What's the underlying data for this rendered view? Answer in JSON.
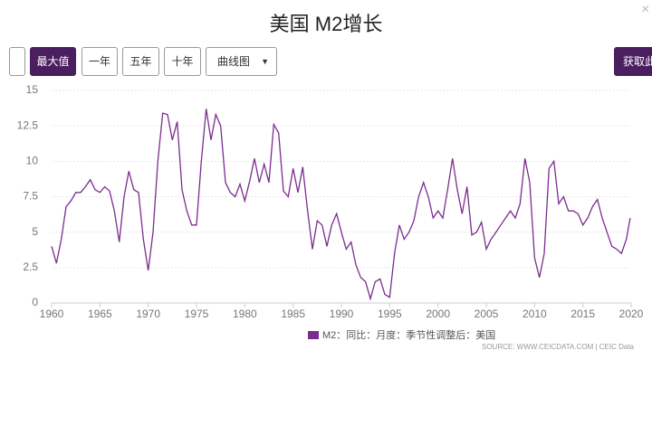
{
  "controls": {
    "buttons": [
      "最大值",
      "一年",
      "五年",
      "十年"
    ],
    "dropdown": "曲线图",
    "action": "获取此"
  },
  "chart_data": {
    "type": "line",
    "title": "美国 M2增长",
    "x": [
      1960,
      1960.5,
      1961,
      1961.5,
      1962,
      1962.5,
      1963,
      1963.5,
      1964,
      1964.5,
      1965,
      1965.5,
      1966,
      1966.5,
      1967,
      1967.5,
      1968,
      1968.5,
      1969,
      1969.5,
      1970,
      1970.5,
      1971,
      1971.5,
      1972,
      1972.5,
      1973,
      1973.5,
      1974,
      1974.5,
      1975,
      1975.5,
      1976,
      1976.5,
      1977,
      1977.5,
      1978,
      1978.5,
      1979,
      1979.5,
      1980,
      1980.5,
      1981,
      1981.5,
      1982,
      1982.5,
      1983,
      1983.5,
      1984,
      1984.5,
      1985,
      1985.5,
      1986,
      1986.5,
      1987,
      1987.5,
      1988,
      1988.5,
      1989,
      1989.5,
      1990,
      1990.5,
      1991,
      1991.5,
      1992,
      1992.5,
      1993,
      1993.5,
      1994,
      1994.5,
      1995,
      1995.5,
      1996,
      1996.5,
      1997,
      1997.5,
      1998,
      1998.5,
      1999,
      1999.5,
      2000,
      2000.5,
      2001,
      2001.5,
      2002,
      2002.5,
      2003,
      2003.5,
      2004,
      2004.5,
      2005,
      2005.5,
      2006,
      2006.5,
      2007,
      2007.5,
      2008,
      2008.5,
      2009,
      2009.5,
      2010,
      2010.5,
      2011,
      2011.5,
      2012,
      2012.5,
      2013,
      2013.5,
      2014,
      2014.5,
      2015,
      2015.5,
      2016,
      2016.5,
      2017,
      2017.5,
      2018,
      2018.5,
      2019,
      2019.5,
      2019.9
    ],
    "series": [
      {
        "name": "M2：同比：月度：季节性调整后：美国",
        "color": "#7b2d8e",
        "values": [
          4.0,
          2.8,
          4.5,
          6.8,
          7.2,
          7.8,
          7.8,
          8.2,
          8.7,
          8.0,
          7.8,
          8.2,
          7.9,
          6.5,
          4.3,
          7.5,
          9.3,
          8.0,
          7.8,
          4.5,
          2.3,
          5.0,
          10.0,
          13.4,
          13.3,
          11.5,
          12.8,
          8.0,
          6.5,
          5.5,
          5.5,
          10.0,
          13.7,
          11.5,
          13.3,
          12.5,
          8.5,
          7.8,
          7.5,
          8.4,
          7.2,
          8.6,
          10.2,
          8.5,
          9.8,
          8.5,
          12.6,
          12.0,
          7.9,
          7.5,
          9.5,
          7.8,
          9.6,
          6.5,
          3.8,
          5.8,
          5.5,
          4.0,
          5.5,
          6.3,
          5.0,
          3.8,
          4.3,
          2.7,
          1.8,
          1.5,
          0.3,
          1.5,
          1.7,
          0.6,
          0.4,
          3.5,
          5.5,
          4.5,
          5.0,
          5.8,
          7.5,
          8.5,
          7.5,
          6.0,
          6.5,
          6.0,
          8.0,
          10.2,
          8.0,
          6.3,
          8.2,
          4.8,
          5.0,
          5.7,
          3.8,
          4.5,
          5.0,
          5.5,
          6.0,
          6.5,
          6.0,
          7.0,
          10.2,
          8.5,
          3.2,
          1.8,
          3.5,
          9.5,
          10.0,
          7.0,
          7.5,
          6.5,
          6.5,
          6.3,
          5.5,
          6.0,
          6.8,
          7.3,
          6.0,
          5.0,
          4.0,
          3.8,
          3.5,
          4.5,
          6.0
        ]
      }
    ],
    "xlim": [
      1960,
      2020
    ],
    "xticks": [
      1960,
      1965,
      1970,
      1975,
      1980,
      1985,
      1990,
      1995,
      2000,
      2005,
      2010,
      2015,
      2020
    ],
    "ylim": [
      0,
      15
    ],
    "yticks": [
      0,
      2.5,
      5,
      7.5,
      10,
      12.5,
      15
    ],
    "grid": true,
    "source": "SOURCE: WWW.CEICDATA.COM | CEIC Data"
  }
}
